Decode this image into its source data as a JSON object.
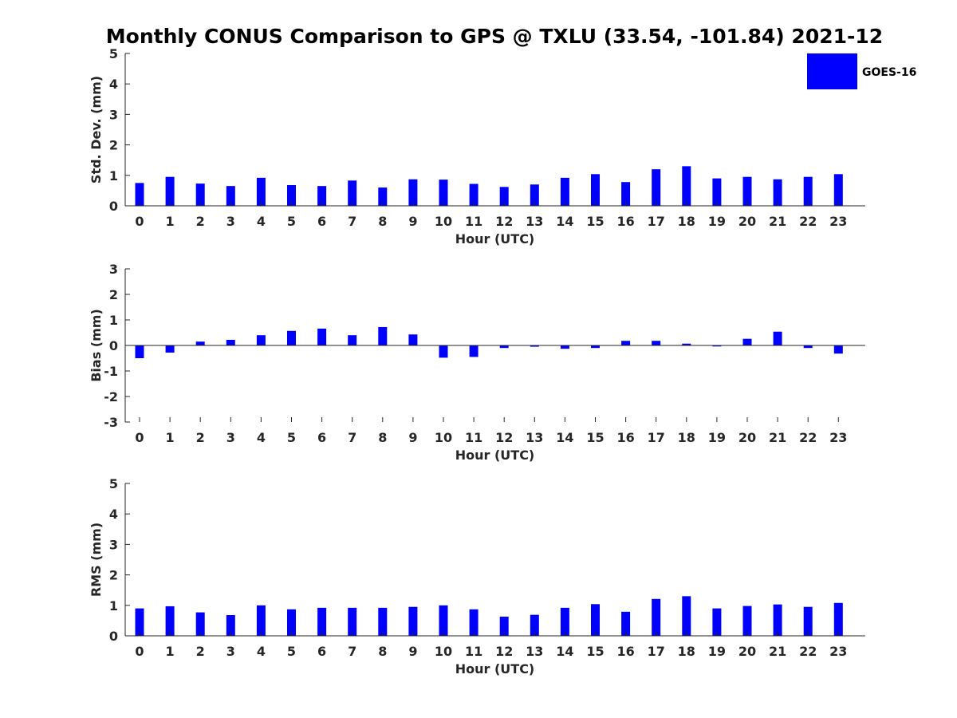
{
  "chart_data": {
    "title": "Monthly CONUS Comparison to GPS @ TXLU (33.54, -101.84) 2021-12",
    "legend": {
      "label": "GOES-16",
      "color": "#0000ff",
      "placement": "top-right"
    },
    "bar_color": "#0000ff",
    "categories": [
      "0",
      "1",
      "2",
      "3",
      "4",
      "5",
      "6",
      "7",
      "8",
      "9",
      "10",
      "11",
      "12",
      "13",
      "14",
      "15",
      "16",
      "17",
      "18",
      "19",
      "20",
      "21",
      "22",
      "23"
    ],
    "panels": [
      {
        "type": "bar",
        "series_name": "GOES-16",
        "xlabel": "Hour (UTC)",
        "ylabel": "Std. Dev. (mm)",
        "ylim": [
          0,
          5
        ],
        "yticks": [
          "0",
          "1",
          "2",
          "3",
          "4",
          "5"
        ],
        "values": [
          0.75,
          0.95,
          0.73,
          0.65,
          0.92,
          0.68,
          0.65,
          0.83,
          0.6,
          0.87,
          0.86,
          0.72,
          0.62,
          0.7,
          0.92,
          1.04,
          0.78,
          1.2,
          1.3,
          0.9,
          0.95,
          0.87,
          0.95,
          1.04
        ]
      },
      {
        "type": "bar",
        "series_name": "GOES-16",
        "xlabel": "Hour (UTC)",
        "ylabel": "Bias (mm)",
        "ylim": [
          -3,
          3
        ],
        "yticks": [
          "-3",
          "-2",
          "-1",
          "0",
          "1",
          "2",
          "3"
        ],
        "values": [
          -0.5,
          -0.28,
          0.15,
          0.22,
          0.4,
          0.57,
          0.66,
          0.4,
          0.72,
          0.43,
          -0.48,
          -0.45,
          -0.1,
          -0.05,
          -0.13,
          -0.1,
          0.18,
          0.18,
          0.07,
          -0.04,
          0.26,
          0.54,
          -0.1,
          -0.32
        ]
      },
      {
        "type": "bar",
        "series_name": "GOES-16",
        "xlabel": "Hour (UTC)",
        "ylabel": "RMS (mm)",
        "ylim": [
          0,
          5
        ],
        "yticks": [
          "0",
          "1",
          "2",
          "3",
          "4",
          "5"
        ],
        "values": [
          0.9,
          0.97,
          0.77,
          0.68,
          1.0,
          0.87,
          0.92,
          0.92,
          0.92,
          0.95,
          1.0,
          0.87,
          0.63,
          0.69,
          0.92,
          1.04,
          0.79,
          1.21,
          1.3,
          0.9,
          0.98,
          1.03,
          0.95,
          1.08
        ]
      }
    ]
  }
}
